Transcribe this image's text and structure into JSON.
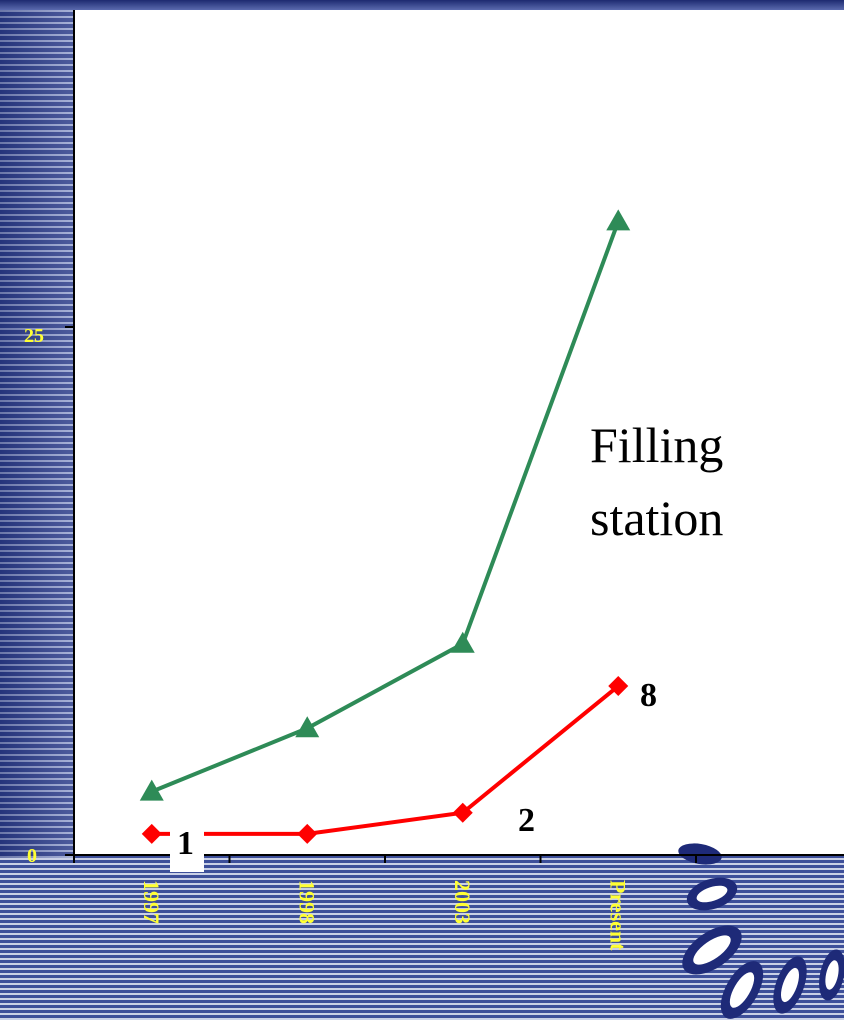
{
  "chart_data": {
    "type": "line",
    "categories": [
      "1997",
      "1998",
      "2003",
      "Present"
    ],
    "y_ticks": [
      "0",
      "25"
    ],
    "ylim": [
      0,
      38
    ],
    "grid": false,
    "legend": "none",
    "series": [
      {
        "name": "Filling station",
        "color": "#2e8b57",
        "marker": "triangle",
        "values": [
          3,
          6,
          10,
          30
        ]
      },
      {
        "name": "",
        "color": "#ff0000",
        "marker": "diamond",
        "values": [
          1,
          1,
          2,
          8
        ]
      }
    ],
    "annotations": [
      {
        "text": "1",
        "category": "1997",
        "series": 1
      },
      {
        "text": "2",
        "category": "2003",
        "series": 1
      },
      {
        "text": "8",
        "category": "Present",
        "series": 1
      }
    ]
  },
  "labels": {
    "series_label_line1": "Filling",
    "series_label_line2": "station"
  },
  "colors": {
    "tick_text": "#ffff33",
    "plot_background": "#ffffff",
    "decor_logo": "#1e2a78"
  },
  "icons": {
    "decor": "leaf-logo-icon"
  }
}
